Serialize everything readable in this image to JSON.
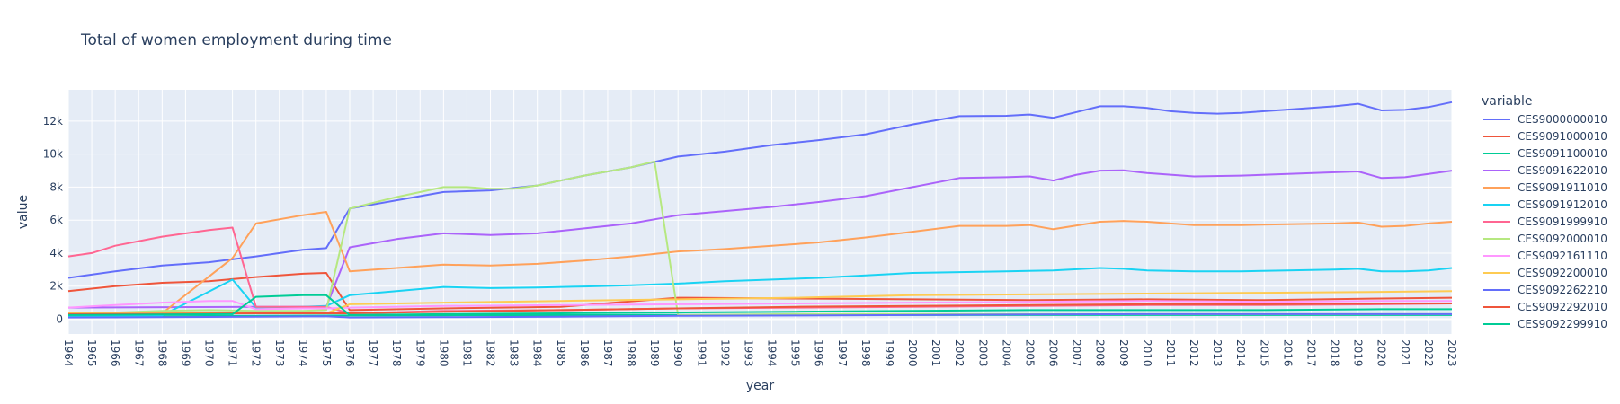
{
  "chart_data": {
    "type": "line",
    "title": "Total of women employment during time",
    "xlabel": "year",
    "ylabel": "value",
    "legend_title": "variable",
    "legend_position": "right",
    "grid": true,
    "xlim": [
      1964,
      2023
    ],
    "ylim": [
      -900,
      13900
    ],
    "y_ticks": [
      0,
      2000,
      4000,
      6000,
      8000,
      10000,
      12000
    ],
    "y_tick_labels": [
      "0",
      "2k",
      "4k",
      "6k",
      "8k",
      "10k",
      "12k"
    ],
    "x_tick_labels": [
      "1964",
      "1965",
      "1966",
      "1967",
      "1968",
      "1969",
      "1970",
      "1971",
      "1972",
      "1973",
      "1974",
      "1975",
      "1976",
      "1977",
      "1978",
      "1979",
      "1980",
      "1981",
      "1982",
      "1983",
      "1984",
      "1985",
      "1986",
      "1987",
      "1988",
      "1989",
      "1990",
      "1991",
      "1992",
      "1993",
      "1994",
      "1995",
      "1996",
      "1997",
      "1998",
      "1999",
      "2000",
      "2001",
      "2002",
      "2003",
      "2004",
      "2005",
      "2006",
      "2007",
      "2008",
      "2009",
      "2010",
      "2011",
      "2012",
      "2013",
      "2014",
      "2015",
      "2016",
      "2017",
      "2018",
      "2019",
      "2020",
      "2021",
      "2022",
      "2023"
    ],
    "series": [
      {
        "name": "CES9000000010",
        "color": "#636efa",
        "x": [
          1964,
          1966,
          1968,
          1970,
          1972,
          1974,
          1975,
          1976,
          1978,
          1980,
          1982,
          1984,
          1986,
          1988,
          1990,
          1992,
          1994,
          1996,
          1998,
          2000,
          2002,
          2004,
          2005,
          2006,
          2007,
          2008,
          2009,
          2010,
          2011,
          2012,
          2013,
          2014,
          2016,
          2018,
          2019,
          2020,
          2021,
          2022,
          2023
        ],
        "y": [
          2500,
          2900,
          3250,
          3450,
          3800,
          4200,
          4300,
          6700,
          7200,
          7700,
          7800,
          8100,
          8700,
          9200,
          9850,
          10150,
          10550,
          10850,
          11200,
          11800,
          12300,
          12320,
          12400,
          12200,
          12550,
          12900,
          12900,
          12800,
          12600,
          12500,
          12450,
          12500,
          12700,
          12900,
          13050,
          12650,
          12680,
          12850,
          13150
        ]
      },
      {
        "name": "CES9091000010",
        "color": "#EF553B",
        "x": [
          1964,
          1966,
          1968,
          1970,
          1972,
          1974,
          1975,
          1976,
          1980,
          1985,
          1990,
          1995,
          2000,
          2005,
          2010,
          2015,
          2020,
          2023
        ],
        "y": [
          1700,
          2000,
          2200,
          2300,
          2550,
          2750,
          2800,
          550,
          650,
          750,
          1300,
          1250,
          1200,
          1150,
          1200,
          1150,
          1250,
          1300
        ]
      },
      {
        "name": "CES9091100010",
        "color": "#00cc96",
        "x": [
          1964,
          1968,
          1972,
          1976,
          1980,
          1985,
          1990,
          1995,
          2000,
          2005,
          2010,
          2015,
          2020,
          2023
        ],
        "y": [
          150,
          180,
          200,
          220,
          230,
          240,
          250,
          250,
          250,
          250,
          250,
          250,
          250,
          250
        ]
      },
      {
        "name": "CES9091622010",
        "color": "#ab63fa",
        "x": [
          1964,
          1972,
          1975,
          1976,
          1977,
          1978,
          1980,
          1982,
          1984,
          1986,
          1988,
          1990,
          1992,
          1994,
          1996,
          1998,
          2000,
          2002,
          2004,
          2005,
          2006,
          2007,
          2008,
          2009,
          2010,
          2012,
          2014,
          2016,
          2018,
          2019,
          2020,
          2021,
          2022,
          2023
        ],
        "y": [
          700,
          750,
          750,
          4350,
          4600,
          4850,
          5200,
          5100,
          5200,
          5500,
          5800,
          6300,
          6550,
          6800,
          7100,
          7450,
          8000,
          8550,
          8600,
          8650,
          8400,
          8750,
          9000,
          9020,
          8850,
          8650,
          8700,
          8800,
          8900,
          8950,
          8550,
          8600,
          8800,
          9000
        ]
      },
      {
        "name": "CES9091911010",
        "color": "#FFA15A",
        "x": [
          1964,
          1968,
          1971,
          1972,
          1974,
          1975,
          1976,
          1978,
          1980,
          1982,
          1984,
          1986,
          1988,
          1990,
          1992,
          1994,
          1996,
          1998,
          2000,
          2002,
          2004,
          2005,
          2006,
          2008,
          2009,
          2010,
          2012,
          2014,
          2016,
          2018,
          2019,
          2020,
          2021,
          2022,
          2023
        ],
        "y": [
          300,
          350,
          3700,
          5800,
          6300,
          6500,
          2900,
          3100,
          3300,
          3250,
          3350,
          3550,
          3800,
          4100,
          4250,
          4450,
          4650,
          4950,
          5300,
          5650,
          5650,
          5700,
          5450,
          5900,
          5950,
          5900,
          5700,
          5700,
          5750,
          5800,
          5850,
          5600,
          5650,
          5800,
          5900
        ]
      },
      {
        "name": "CES9091912010",
        "color": "#19d3f3",
        "x": [
          1964,
          1968,
          1971,
          1972,
          1974,
          1975,
          1976,
          1978,
          1980,
          1982,
          1984,
          1986,
          1988,
          1990,
          1992,
          1994,
          1996,
          1998,
          2000,
          2002,
          2004,
          2006,
          2008,
          2009,
          2010,
          2012,
          2014,
          2016,
          2018,
          2019,
          2020,
          2021,
          2022,
          2023
        ],
        "y": [
          200,
          220,
          2400,
          700,
          750,
          800,
          1450,
          1700,
          1950,
          1880,
          1920,
          1980,
          2050,
          2150,
          2300,
          2400,
          2500,
          2650,
          2800,
          2850,
          2900,
          2950,
          3100,
          3050,
          2950,
          2900,
          2900,
          2950,
          3000,
          3050,
          2900,
          2900,
          2950,
          3100
        ]
      },
      {
        "name": "CES9091999910",
        "color": "#FF6692",
        "x": [
          1964,
          1965,
          1966,
          1968,
          1970,
          1971,
          1972,
          1974,
          1975,
          1976,
          1980,
          1985,
          1990,
          1995,
          2000,
          2005,
          2010,
          2015,
          2020,
          2023
        ],
        "y": [
          3800,
          4000,
          4450,
          5000,
          5400,
          5550,
          750,
          750,
          750,
          350,
          500,
          550,
          650,
          700,
          750,
          800,
          850,
          850,
          900,
          950
        ]
      },
      {
        "name": "CES9092000010",
        "color": "#B6E880",
        "x": [
          1964,
          1966,
          1968,
          1970,
          1972,
          1974,
          1975,
          1976,
          1978,
          1980,
          1981,
          1982,
          1983,
          1984,
          1986,
          1988,
          1989,
          1990,
          1995,
          2000,
          2002,
          2004,
          2006,
          2008,
          2010,
          2015,
          2020,
          2023
        ],
        "y": [
          300,
          400,
          500,
          550,
          500,
          500,
          550,
          6700,
          7400,
          8000,
          8000,
          7900,
          7900,
          8100,
          8700,
          9200,
          9550,
          250,
          300,
          300,
          300,
          300,
          300,
          300,
          300,
          300,
          300,
          300
        ]
      },
      {
        "name": "CES9092161110",
        "color": "#FF97FF",
        "x": [
          1964,
          1966,
          1968,
          1970,
          1971,
          1972,
          1974,
          1975,
          1976,
          1980,
          1985,
          1990,
          1995,
          2000,
          2005,
          2010,
          2015,
          2020,
          2023
        ],
        "y": [
          700,
          850,
          1000,
          1100,
          1100,
          600,
          650,
          650,
          700,
          800,
          850,
          900,
          950,
          1000,
          1050,
          1100,
          1050,
          1100,
          1100
        ]
      },
      {
        "name": "CES9092200010",
        "color": "#FECB52",
        "x": [
          1964,
          1968,
          1972,
          1975,
          1976,
          1980,
          1985,
          1990,
          1995,
          2000,
          2005,
          2010,
          2015,
          2020,
          2023
        ],
        "y": [
          350,
          350,
          350,
          350,
          900,
          1000,
          1100,
          1200,
          1300,
          1450,
          1500,
          1550,
          1600,
          1650,
          1700
        ]
      },
      {
        "name": "CES9092262210",
        "color": "#636efa",
        "x": [
          1964,
          1968,
          1972,
          1975,
          1976,
          1980,
          1985,
          1990,
          1995,
          2000,
          2005,
          2010,
          2015,
          2020,
          2023
        ],
        "y": [
          100,
          120,
          150,
          180,
          100,
          120,
          150,
          200,
          220,
          250,
          280,
          300,
          300,
          300,
          300
        ]
      },
      {
        "name": "CES9092292010",
        "color": "#EF553B",
        "x": [
          1964,
          1968,
          1972,
          1975,
          1976,
          1980,
          1985,
          1990,
          1995,
          2000,
          2005,
          2010,
          2015,
          2020,
          2023
        ],
        "y": [
          300,
          320,
          350,
          350,
          350,
          450,
          550,
          650,
          750,
          800,
          850,
          900,
          900,
          950,
          950
        ]
      },
      {
        "name": "CES9092299910",
        "color": "#00cc96",
        "x": [
          1964,
          1968,
          1971,
          1972,
          1974,
          1975,
          1976,
          1980,
          1985,
          1990,
          1995,
          2000,
          2005,
          2010,
          2015,
          2020,
          2023
        ],
        "y": [
          250,
          280,
          300,
          1350,
          1450,
          1450,
          250,
          300,
          350,
          400,
          450,
          500,
          550,
          550,
          550,
          600,
          600
        ]
      }
    ]
  }
}
